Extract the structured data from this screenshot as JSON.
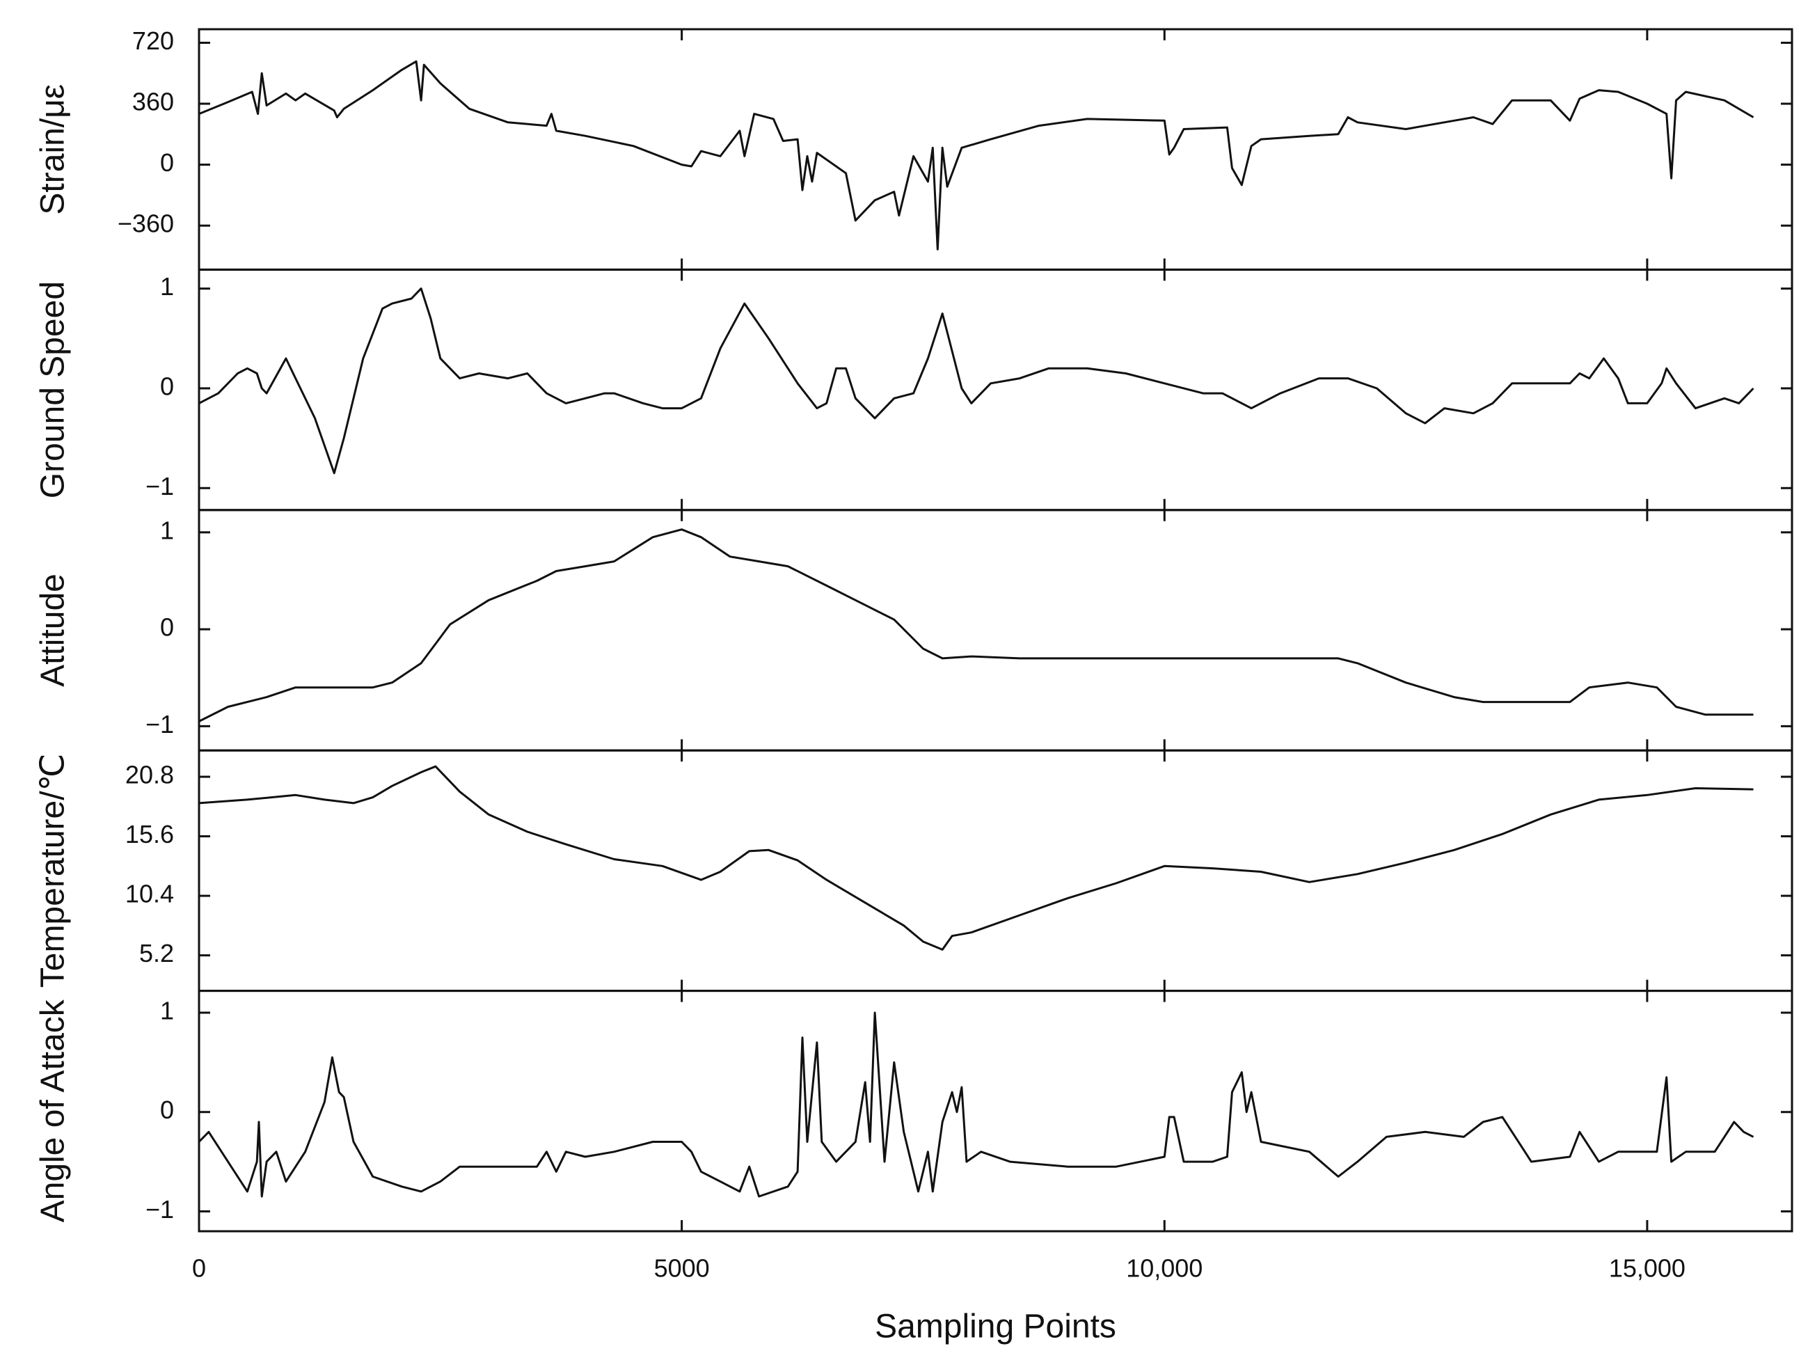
{
  "chart_data": [
    {
      "type": "line",
      "ylabel": "Strain/με",
      "ylim": [
        -620,
        800
      ],
      "yticks": [
        {
          "value": -360,
          "label": "−360"
        },
        0,
        360,
        720
      ],
      "xlim": [
        0,
        16500
      ],
      "x": [
        0,
        300,
        550,
        610,
        650,
        700,
        900,
        1000,
        1100,
        1400,
        1430,
        1500,
        1800,
        2100,
        2250,
        2300,
        2330,
        2500,
        2800,
        3200,
        3600,
        3650,
        3700,
        4000,
        4500,
        5000,
        5100,
        5200,
        5400,
        5600,
        5650,
        5750,
        5950,
        6050,
        6200,
        6250,
        6300,
        6350,
        6400,
        6700,
        6800,
        7000,
        7200,
        7250,
        7400,
        7550,
        7600,
        7650,
        7700,
        7750,
        7900,
        8200,
        8700,
        9200,
        10000,
        10050,
        10100,
        10200,
        10650,
        10700,
        10800,
        10900,
        11000,
        11500,
        11800,
        11900,
        12000,
        12500,
        13000,
        13200,
        13400,
        13600,
        14000,
        14200,
        14300,
        14500,
        14700,
        15000,
        15200,
        15250,
        15300,
        15400,
        15800,
        16100
      ],
      "series": [
        {
          "color": "#111111",
          "values": [
            300,
            370,
            430,
            300,
            540,
            350,
            420,
            380,
            420,
            320,
            280,
            330,
            440,
            560,
            610,
            380,
            590,
            480,
            330,
            250,
            230,
            300,
            200,
            170,
            110,
            0,
            -10,
            80,
            50,
            200,
            50,
            300,
            270,
            140,
            150,
            -150,
            50,
            -100,
            70,
            -50,
            -330,
            -210,
            -160,
            -300,
            50,
            -100,
            100,
            -500,
            100,
            -130,
            100,
            150,
            230,
            270,
            260,
            60,
            100,
            210,
            220,
            -20,
            -120,
            110,
            150,
            170,
            180,
            280,
            250,
            210,
            260,
            280,
            240,
            380,
            380,
            260,
            390,
            440,
            430,
            360,
            300,
            -80,
            380,
            430,
            380,
            280
          ]
        }
      ]
    },
    {
      "type": "line",
      "ylabel": "Ground Speed",
      "ylim": [
        -1.22,
        1.19
      ],
      "yticks": [
        {
          "value": -1,
          "label": "−1"
        },
        0,
        1
      ],
      "xlim": [
        0,
        16500
      ],
      "x": [
        0,
        200,
        400,
        500,
        600,
        650,
        700,
        900,
        1000,
        1200,
        1400,
        1500,
        1700,
        1900,
        2000,
        2200,
        2300,
        2400,
        2500,
        2700,
        2900,
        3200,
        3400,
        3600,
        3800,
        4000,
        4200,
        4300,
        4600,
        4800,
        5000,
        5200,
        5400,
        5650,
        5900,
        6200,
        6400,
        6500,
        6600,
        6700,
        6800,
        7000,
        7200,
        7400,
        7550,
        7700,
        7900,
        8000,
        8200,
        8500,
        8800,
        9200,
        9600,
        10000,
        10400,
        10600,
        10900,
        11200,
        11600,
        11900,
        12200,
        12500,
        12700,
        12900,
        13200,
        13400,
        13600,
        14000,
        14200,
        14300,
        14400,
        14550,
        14700,
        14800,
        15000,
        15150,
        15200,
        15300,
        15500,
        15800,
        15950,
        16100
      ],
      "series": [
        {
          "color": "#111111",
          "values": [
            -0.15,
            -0.05,
            0.15,
            0.2,
            0.15,
            0.0,
            -0.05,
            0.3,
            0.1,
            -0.3,
            -0.85,
            -0.5,
            0.3,
            0.8,
            0.85,
            0.9,
            1.0,
            0.7,
            0.3,
            0.1,
            0.15,
            0.1,
            0.15,
            -0.05,
            -0.15,
            -0.1,
            -0.05,
            -0.05,
            -0.15,
            -0.2,
            -0.2,
            -0.1,
            0.4,
            0.85,
            0.5,
            0.05,
            -0.2,
            -0.15,
            0.2,
            0.2,
            -0.1,
            -0.3,
            -0.1,
            -0.05,
            0.3,
            0.75,
            0.0,
            -0.15,
            0.05,
            0.1,
            0.2,
            0.2,
            0.15,
            0.05,
            -0.05,
            -0.05,
            -0.2,
            -0.05,
            0.1,
            0.1,
            0.0,
            -0.25,
            -0.35,
            -0.2,
            -0.25,
            -0.15,
            0.05,
            0.05,
            0.05,
            0.15,
            0.1,
            0.3,
            0.1,
            -0.15,
            -0.15,
            0.05,
            0.2,
            0.05,
            -0.2,
            -0.1,
            -0.15,
            0.0
          ]
        }
      ]
    },
    {
      "type": "line",
      "ylabel": "Attitude",
      "ylim": [
        -1.25,
        1.23
      ],
      "yticks": [
        {
          "value": -1,
          "label": "−1"
        },
        0,
        1
      ],
      "xlim": [
        0,
        16500
      ],
      "x": [
        0,
        300,
        700,
        1000,
        1400,
        1800,
        2000,
        2300,
        2600,
        3000,
        3500,
        3700,
        4000,
        4300,
        4700,
        5000,
        5200,
        5500,
        5800,
        6100,
        6500,
        6800,
        7200,
        7500,
        7700,
        8000,
        8500,
        9000,
        10000,
        11000,
        11800,
        12000,
        12500,
        13000,
        13300,
        13800,
        14200,
        14400,
        14800,
        15100,
        15300,
        15600,
        16100
      ],
      "series": [
        {
          "color": "#111111",
          "values": [
            -0.95,
            -0.8,
            -0.7,
            -0.6,
            -0.6,
            -0.6,
            -0.55,
            -0.35,
            0.05,
            0.3,
            0.5,
            0.6,
            0.65,
            0.7,
            0.95,
            1.03,
            0.95,
            0.75,
            0.7,
            0.65,
            0.45,
            0.3,
            0.1,
            -0.2,
            -0.3,
            -0.28,
            -0.3,
            -0.3,
            -0.3,
            -0.3,
            -0.3,
            -0.35,
            -0.55,
            -0.7,
            -0.75,
            -0.75,
            -0.75,
            -0.6,
            -0.55,
            -0.6,
            -0.8,
            -0.88,
            -0.88
          ]
        }
      ]
    },
    {
      "type": "line",
      "ylabel": "Temperature/℃",
      "ylim": [
        2.1,
        23.1
      ],
      "yticks": [
        5.2,
        10.4,
        15.6,
        20.8
      ],
      "xlim": [
        0,
        16500
      ],
      "x": [
        0,
        500,
        1000,
        1300,
        1600,
        1800,
        2000,
        2300,
        2450,
        2700,
        3000,
        3400,
        3800,
        4300,
        4800,
        5200,
        5400,
        5700,
        5900,
        6200,
        6500,
        7000,
        7300,
        7500,
        7700,
        7800,
        8000,
        8500,
        9000,
        9500,
        10000,
        10500,
        11000,
        11500,
        12000,
        12500,
        13000,
        13500,
        14000,
        14500,
        15000,
        15500,
        16100
      ],
      "series": [
        {
          "color": "#111111",
          "values": [
            18.5,
            18.8,
            19.2,
            18.8,
            18.5,
            19.0,
            20.0,
            21.2,
            21.7,
            19.5,
            17.5,
            16.0,
            14.9,
            13.6,
            13.0,
            11.8,
            12.5,
            14.3,
            14.4,
            13.5,
            11.8,
            9.3,
            7.8,
            6.4,
            5.7,
            6.9,
            7.2,
            8.7,
            10.2,
            11.5,
            13.0,
            12.8,
            12.5,
            11.6,
            12.3,
            13.3,
            14.4,
            15.8,
            17.5,
            18.8,
            19.2,
            19.8,
            19.7
          ]
        }
      ]
    },
    {
      "type": "line",
      "ylabel": "Angle of Attack",
      "xlabel": "Sampling Points",
      "ylim": [
        -1.2,
        1.22
      ],
      "yticks": [
        {
          "value": -1,
          "label": "−1"
        },
        0,
        1
      ],
      "xlim": [
        0,
        16500
      ],
      "xticks": [
        0,
        5000,
        {
          "value": 10000,
          "label": "10,000"
        },
        {
          "value": 15000,
          "label": "15,000"
        }
      ],
      "x": [
        0,
        100,
        300,
        500,
        600,
        620,
        650,
        700,
        800,
        900,
        1100,
        1300,
        1380,
        1450,
        1500,
        1600,
        1800,
        2100,
        2300,
        2500,
        2700,
        3000,
        3500,
        3600,
        3700,
        3800,
        4000,
        4300,
        4700,
        5000,
        5100,
        5200,
        5400,
        5600,
        5700,
        5800,
        6100,
        6200,
        6250,
        6300,
        6400,
        6450,
        6600,
        6800,
        6900,
        6950,
        7000,
        7100,
        7200,
        7300,
        7400,
        7450,
        7550,
        7600,
        7700,
        7800,
        7850,
        7900,
        7950,
        8100,
        8400,
        9000,
        9500,
        10000,
        10050,
        10100,
        10200,
        10500,
        10650,
        10700,
        10800,
        10850,
        10900,
        11000,
        11500,
        11800,
        12000,
        12300,
        12700,
        13100,
        13300,
        13500,
        13700,
        13800,
        14200,
        14300,
        14500,
        14700,
        15100,
        15200,
        15250,
        15400,
        15700,
        15800,
        15900,
        16000,
        16100
      ],
      "series": [
        {
          "color": "#111111",
          "values": [
            -0.3,
            -0.2,
            -0.5,
            -0.8,
            -0.5,
            -0.1,
            -0.85,
            -0.5,
            -0.4,
            -0.7,
            -0.4,
            0.1,
            0.55,
            0.2,
            0.15,
            -0.3,
            -0.65,
            -0.75,
            -0.8,
            -0.7,
            -0.55,
            -0.55,
            -0.55,
            -0.4,
            -0.6,
            -0.4,
            -0.45,
            -0.4,
            -0.3,
            -0.3,
            -0.4,
            -0.6,
            -0.7,
            -0.8,
            -0.55,
            -0.85,
            -0.75,
            -0.6,
            0.75,
            -0.3,
            0.7,
            -0.3,
            -0.5,
            -0.3,
            0.3,
            -0.3,
            1.0,
            -0.5,
            0.5,
            -0.2,
            -0.6,
            -0.8,
            -0.4,
            -0.8,
            -0.1,
            0.2,
            0.0,
            0.25,
            -0.5,
            -0.4,
            -0.5,
            -0.55,
            -0.55,
            -0.45,
            -0.05,
            -0.05,
            -0.5,
            -0.5,
            -0.45,
            0.2,
            0.4,
            0.0,
            0.2,
            -0.3,
            -0.4,
            -0.65,
            -0.5,
            -0.25,
            -0.2,
            -0.25,
            -0.1,
            -0.05,
            -0.35,
            -0.5,
            -0.45,
            -0.2,
            -0.5,
            -0.4,
            -0.4,
            0.35,
            -0.5,
            -0.4,
            -0.4,
            -0.25,
            -0.1,
            -0.2,
            -0.25
          ]
        }
      ]
    }
  ]
}
